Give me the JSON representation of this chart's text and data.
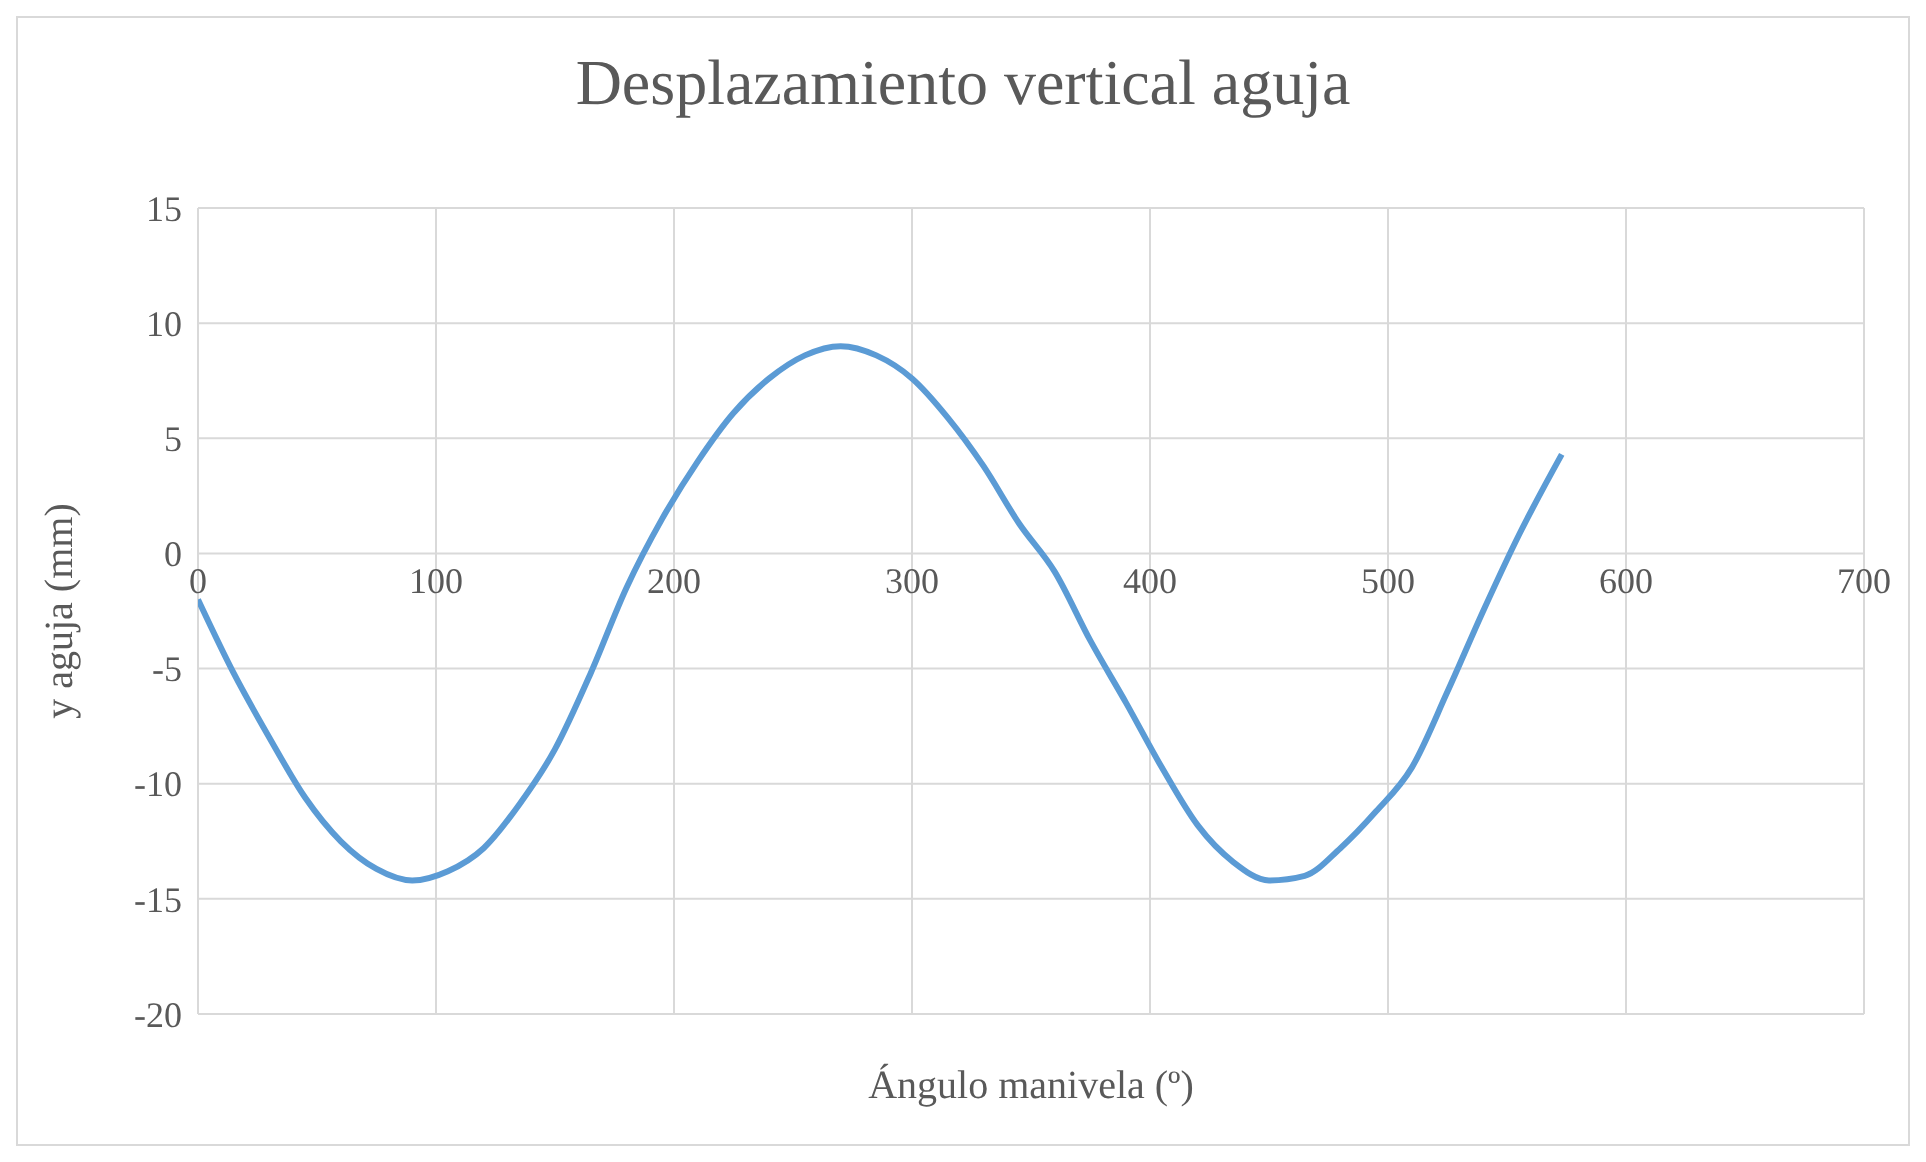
{
  "chart_data": {
    "type": "line",
    "title": "Desplazamiento vertical aguja",
    "xlabel": "Ángulo manivela (º)",
    "ylabel": "y aguja (mm)",
    "x": [
      0,
      15,
      30,
      45,
      60,
      75,
      90,
      105,
      120,
      135,
      150,
      165,
      180,
      195,
      210,
      225,
      240,
      255,
      270,
      285,
      300,
      315,
      330,
      345,
      360,
      375,
      390,
      405,
      420,
      435,
      450,
      465,
      480,
      495,
      510,
      525,
      540,
      555,
      573
    ],
    "series": [
      {
        "color": "#5b9bd5",
        "values": [
          -2.0,
          -5.2,
          -8.0,
          -10.6,
          -12.5,
          -13.7,
          -14.2,
          -13.8,
          -12.8,
          -10.9,
          -8.5,
          -5.2,
          -1.5,
          1.5,
          4.0,
          6.1,
          7.6,
          8.6,
          9.0,
          8.6,
          7.6,
          5.9,
          3.8,
          1.3,
          -0.8,
          -3.8,
          -6.5,
          -9.3,
          -11.8,
          -13.4,
          -14.2,
          -14.0,
          -12.8,
          -11.2,
          -9.3,
          -6.0,
          -2.5,
          0.8,
          4.3
        ]
      }
    ],
    "xlim": [
      0,
      700
    ],
    "xticks": [
      0,
      100,
      200,
      300,
      400,
      500,
      600,
      700
    ],
    "ylim": [
      -20,
      15
    ],
    "yticks": [
      -20,
      -15,
      -10,
      -5,
      0,
      5,
      10,
      15
    ],
    "grid": true,
    "marker": "none",
    "line_style": "solid"
  }
}
